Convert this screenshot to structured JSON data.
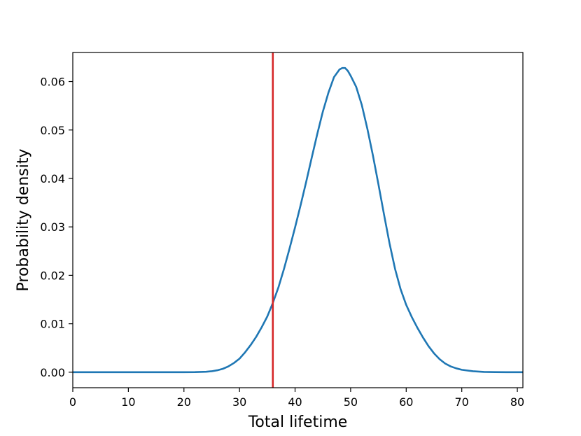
{
  "chart_data": {
    "type": "line",
    "title": "",
    "xlabel": "Total lifetime",
    "ylabel": "Probability density",
    "xlim": [
      0,
      81
    ],
    "ylim": [
      -0.0032,
      0.066
    ],
    "x_ticks": [
      0,
      10,
      20,
      30,
      40,
      50,
      60,
      70,
      80
    ],
    "x_tick_labels": [
      "0",
      "10",
      "20",
      "30",
      "40",
      "50",
      "60",
      "70",
      "80"
    ],
    "y_ticks": [
      0.0,
      0.01,
      0.02,
      0.03,
      0.04,
      0.05,
      0.06
    ],
    "y_tick_labels": [
      "0.00",
      "0.01",
      "0.02",
      "0.03",
      "0.04",
      "0.05",
      "0.06"
    ],
    "grid": false,
    "series": [
      {
        "color": "#1f77b4",
        "x": [
          0,
          5,
          10,
          15,
          20,
          22,
          24,
          25,
          26,
          27,
          28,
          29,
          30,
          31,
          32,
          33,
          34,
          35,
          36,
          37,
          38,
          39,
          40,
          41,
          42,
          43,
          44,
          45,
          46,
          47,
          48,
          48.5,
          49,
          49.5,
          50,
          51,
          52,
          53,
          54,
          55,
          56,
          57,
          58,
          59,
          60,
          61,
          62,
          63,
          64,
          65,
          66,
          67,
          68,
          69,
          70,
          72,
          74,
          76,
          78,
          81
        ],
        "y": [
          0.0,
          0.0,
          0.0,
          0.0,
          0.0,
          2e-05,
          0.0001,
          0.0002,
          0.0004,
          0.0007,
          0.0012,
          0.0019,
          0.0028,
          0.0041,
          0.0056,
          0.0073,
          0.0093,
          0.0115,
          0.0143,
          0.0175,
          0.0213,
          0.0255,
          0.0299,
          0.0345,
          0.0393,
          0.0443,
          0.0492,
          0.0538,
          0.0577,
          0.0609,
          0.0625,
          0.0628,
          0.0628,
          0.0622,
          0.0612,
          0.0589,
          0.0552,
          0.0503,
          0.0448,
          0.0388,
          0.0326,
          0.0266,
          0.0213,
          0.0171,
          0.0139,
          0.0114,
          0.0092,
          0.0072,
          0.0054,
          0.0039,
          0.0027,
          0.0018,
          0.0012,
          0.0008,
          0.0005,
          0.0002,
          6e-05,
          2e-05,
          0.0,
          0.0
        ]
      }
    ],
    "vline": {
      "x": 36,
      "color": "#d62728"
    }
  }
}
